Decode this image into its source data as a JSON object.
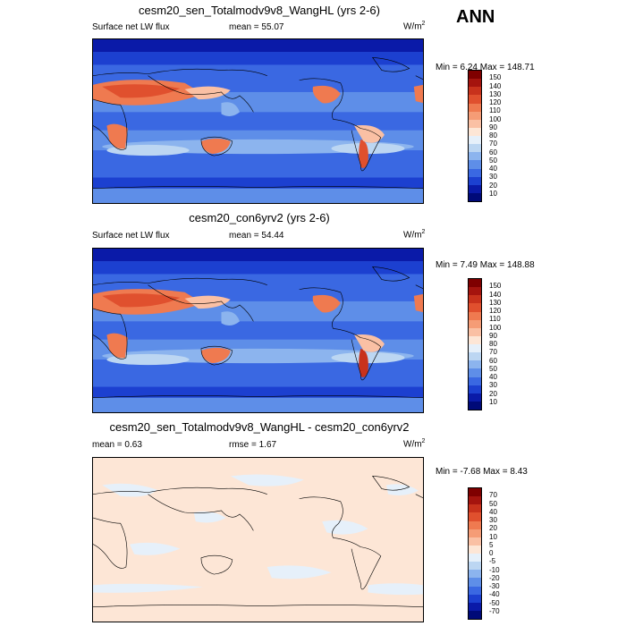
{
  "header": {
    "season": "ANN"
  },
  "panels": [
    {
      "title": "cesm20_sen_Totalmodv9v8_WangHL (yrs 2-6)",
      "left_label": "Surface net LW flux",
      "stat_label": "mean =",
      "stat_value": "55.07",
      "units": "W/m",
      "units_exp": "2",
      "minmax": "Min =   6.24 Max = 148.71",
      "colorbar": {
        "levels": [
          "150",
          "140",
          "130",
          "120",
          "110",
          "100",
          "90",
          "80",
          "70",
          "60",
          "50",
          "40",
          "30",
          "20",
          "10"
        ],
        "colors": [
          "#7f0000",
          "#a5140e",
          "#c8321c",
          "#e0502e",
          "#ef7a50",
          "#f59c76",
          "#fac0a4",
          "#fde6d6",
          "#e6f0fa",
          "#bcd6f2",
          "#8cb4ee",
          "#5e8ee8",
          "#3a68e2",
          "#1c40d0",
          "#0a1aa8",
          "#000a78"
        ]
      },
      "map_style": "full"
    },
    {
      "title": "cesm20_con6yrv2 (yrs 2-6)",
      "left_label": "Surface net LW flux",
      "stat_label": "mean =",
      "stat_value": "54.44",
      "units": "W/m",
      "units_exp": "2",
      "minmax": "Min =   7.49 Max = 148.88",
      "colorbar": {
        "levels": [
          "150",
          "140",
          "130",
          "120",
          "110",
          "100",
          "90",
          "80",
          "70",
          "60",
          "50",
          "40",
          "30",
          "20",
          "10"
        ],
        "colors": [
          "#7f0000",
          "#a5140e",
          "#c8321c",
          "#e0502e",
          "#ef7a50",
          "#f59c76",
          "#fac0a4",
          "#fde6d6",
          "#e6f0fa",
          "#bcd6f2",
          "#8cb4ee",
          "#5e8ee8",
          "#3a68e2",
          "#1c40d0",
          "#0a1aa8",
          "#000a78"
        ]
      },
      "map_style": "full"
    },
    {
      "title": "cesm20_sen_Totalmodv9v8_WangHL - cesm20_con6yrv2",
      "left_label": "mean =   0.63",
      "stat_label": "rmse =",
      "stat_value": "1.67",
      "units": "W/m",
      "units_exp": "2",
      "minmax": "Min =  -7.68 Max =   8.43",
      "colorbar": {
        "levels": [
          "70",
          "50",
          "40",
          "30",
          "20",
          "10",
          "5",
          "0",
          "-5",
          "-10",
          "-20",
          "-30",
          "-40",
          "-50",
          "-70"
        ],
        "colors": [
          "#7f0000",
          "#a5140e",
          "#c8321c",
          "#e0502e",
          "#ef7a50",
          "#f59c76",
          "#fac0a4",
          "#fde6d6",
          "#e6f0fa",
          "#bcd6f2",
          "#8cb4ee",
          "#5e8ee8",
          "#3a68e2",
          "#1c40d0",
          "#0a1aa8",
          "#000a78"
        ]
      },
      "map_style": "diff"
    }
  ]
}
